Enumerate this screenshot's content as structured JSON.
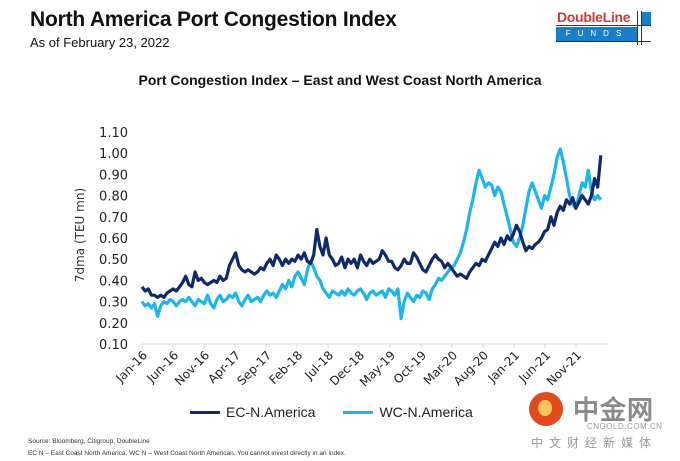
{
  "header": {
    "title": "North America Port Congestion Index",
    "subtitle": "As of February 23, 2022",
    "logo": {
      "brand": "DoubleLine",
      "sub": "FUNDS"
    }
  },
  "chart_data": {
    "type": "line",
    "title": "Port Congestion Index – East and West Coast North America",
    "xlabel": "",
    "ylabel": "7dma (TEU mn)",
    "ylim": [
      0.1,
      1.1
    ],
    "yticks": [
      "1.10",
      "1.00",
      "0.90",
      "0.80",
      "0.70",
      "0.60",
      "0.50",
      "0.40",
      "0.30",
      "0.20",
      "0.10"
    ],
    "xticks": [
      "Jan-16",
      "Jun-16",
      "Nov-16",
      "Apr-17",
      "Sep-17",
      "Feb-18",
      "Jul-18",
      "Dec-18",
      "May-19",
      "Oct-19",
      "Mar-20",
      "Aug-20",
      "Jan-21",
      "Jun-21",
      "Nov-21"
    ],
    "x_start": "Jan-16",
    "x_months_per_tick": 5,
    "x_total_months": 74,
    "grid": false,
    "legend": "bottom",
    "series": [
      {
        "name": "EC-N.America",
        "color": "#0f2a6b",
        "values": [
          0.37,
          0.35,
          0.36,
          0.33,
          0.33,
          0.32,
          0.33,
          0.32,
          0.34,
          0.35,
          0.36,
          0.35,
          0.37,
          0.39,
          0.42,
          0.38,
          0.37,
          0.44,
          0.4,
          0.41,
          0.39,
          0.38,
          0.39,
          0.4,
          0.39,
          0.42,
          0.4,
          0.41,
          0.47,
          0.5,
          0.53,
          0.47,
          0.45,
          0.44,
          0.45,
          0.44,
          0.43,
          0.44,
          0.46,
          0.45,
          0.48,
          0.5,
          0.47,
          0.52,
          0.5,
          0.47,
          0.5,
          0.48,
          0.5,
          0.49,
          0.52,
          0.5,
          0.53,
          0.49,
          0.48,
          0.52,
          0.64,
          0.56,
          0.52,
          0.6,
          0.52,
          0.5,
          0.47,
          0.48,
          0.51,
          0.46,
          0.5,
          0.48,
          0.5,
          0.46,
          0.52,
          0.49,
          0.47,
          0.5,
          0.48,
          0.49,
          0.5,
          0.54,
          0.52,
          0.49,
          0.49,
          0.46,
          0.45,
          0.47,
          0.5,
          0.48,
          0.48,
          0.53,
          0.51,
          0.48,
          0.45,
          0.44,
          0.47,
          0.5,
          0.52,
          0.5,
          0.49,
          0.46,
          0.48,
          0.46,
          0.44,
          0.42,
          0.43,
          0.42,
          0.41,
          0.44,
          0.46,
          0.48,
          0.47,
          0.5,
          0.49,
          0.52,
          0.55,
          0.58,
          0.56,
          0.6,
          0.57,
          0.61,
          0.59,
          0.62,
          0.66,
          0.63,
          0.58,
          0.54,
          0.56,
          0.55,
          0.57,
          0.58,
          0.6,
          0.63,
          0.64,
          0.7,
          0.66,
          0.72,
          0.75,
          0.73,
          0.78,
          0.76,
          0.79,
          0.74,
          0.77,
          0.8,
          0.78,
          0.76,
          0.8,
          0.88,
          0.84,
          0.99
        ]
      },
      {
        "name": "WC-N.America",
        "color": "#1fb4ea",
        "values": [
          0.3,
          0.28,
          0.29,
          0.27,
          0.29,
          0.23,
          0.28,
          0.3,
          0.29,
          0.31,
          0.3,
          0.28,
          0.3,
          0.31,
          0.3,
          0.32,
          0.3,
          0.28,
          0.31,
          0.3,
          0.29,
          0.33,
          0.29,
          0.27,
          0.31,
          0.33,
          0.3,
          0.31,
          0.33,
          0.32,
          0.34,
          0.3,
          0.28,
          0.31,
          0.33,
          0.3,
          0.31,
          0.32,
          0.3,
          0.33,
          0.35,
          0.33,
          0.34,
          0.32,
          0.35,
          0.38,
          0.36,
          0.4,
          0.37,
          0.42,
          0.44,
          0.41,
          0.38,
          0.45,
          0.49,
          0.46,
          0.42,
          0.4,
          0.36,
          0.34,
          0.32,
          0.35,
          0.34,
          0.33,
          0.35,
          0.33,
          0.36,
          0.34,
          0.33,
          0.35,
          0.36,
          0.34,
          0.31,
          0.34,
          0.35,
          0.33,
          0.34,
          0.35,
          0.32,
          0.36,
          0.35,
          0.33,
          0.36,
          0.22,
          0.3,
          0.34,
          0.32,
          0.3,
          0.33,
          0.32,
          0.35,
          0.34,
          0.31,
          0.36,
          0.38,
          0.41,
          0.4,
          0.42,
          0.44,
          0.46,
          0.47,
          0.5,
          0.53,
          0.58,
          0.64,
          0.72,
          0.78,
          0.86,
          0.92,
          0.88,
          0.84,
          0.86,
          0.85,
          0.8,
          0.84,
          0.82,
          0.76,
          0.7,
          0.64,
          0.58,
          0.56,
          0.6,
          0.66,
          0.74,
          0.82,
          0.86,
          0.82,
          0.78,
          0.74,
          0.8,
          0.78,
          0.84,
          0.9,
          0.98,
          1.02,
          0.96,
          0.88,
          0.8,
          0.76,
          0.74,
          0.8,
          0.86,
          0.84,
          0.92,
          0.82,
          0.78,
          0.8,
          0.78
        ]
      }
    ]
  },
  "legend": [
    {
      "label": "EC-N.America",
      "color": "#0f2a6b"
    },
    {
      "label": "WC-N.America",
      "color": "#1fb4ea"
    }
  ],
  "footer": {
    "source": "Source: Bloomberg, Citigroup, DoubleLine",
    "note": "EC N – East Coast North America. WC N – West Coast North American. You cannot invest directly in an index."
  },
  "watermark": {
    "cn_title": "中金网",
    "domain": "CNGOLD.COM.CN",
    "cn_sub": "中文财经新媒体"
  }
}
